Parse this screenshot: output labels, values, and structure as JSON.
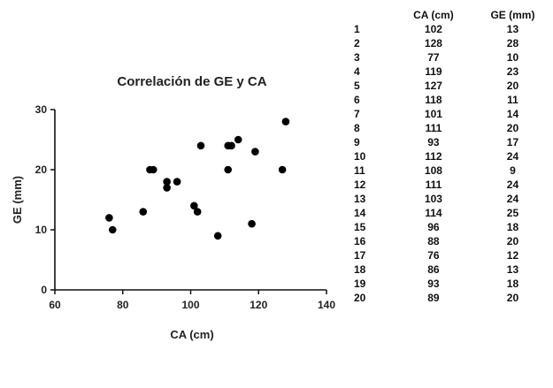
{
  "chart_data": {
    "type": "scatter",
    "title": "Correlación de GE y CA",
    "xlabel": "CA (cm)",
    "ylabel": "GE (mm)",
    "xlim": [
      60,
      140
    ],
    "ylim": [
      0,
      30
    ],
    "xticks": [
      60,
      80,
      100,
      120,
      140
    ],
    "yticks": [
      0,
      10,
      20,
      30
    ],
    "grid": false,
    "legend": "none",
    "point_color": "#000000",
    "series": [
      {
        "points": [
          {
            "x": 102,
            "y": 13
          },
          {
            "x": 128,
            "y": 28
          },
          {
            "x": 77,
            "y": 10
          },
          {
            "x": 119,
            "y": 23
          },
          {
            "x": 127,
            "y": 20
          },
          {
            "x": 118,
            "y": 11
          },
          {
            "x": 101,
            "y": 14
          },
          {
            "x": 111,
            "y": 20
          },
          {
            "x": 93,
            "y": 17
          },
          {
            "x": 112,
            "y": 24
          },
          {
            "x": 108,
            "y": 9
          },
          {
            "x": 111,
            "y": 24
          },
          {
            "x": 103,
            "y": 24
          },
          {
            "x": 114,
            "y": 25
          },
          {
            "x": 96,
            "y": 18
          },
          {
            "x": 88,
            "y": 20
          },
          {
            "x": 76,
            "y": 12
          },
          {
            "x": 86,
            "y": 13
          },
          {
            "x": 93,
            "y": 18
          },
          {
            "x": 89,
            "y": 20
          }
        ]
      }
    ]
  },
  "table": {
    "headers": [
      "",
      "CA (cm)",
      "GE (mm)"
    ],
    "rows": [
      [
        "1",
        "102",
        "13"
      ],
      [
        "2",
        "128",
        "28"
      ],
      [
        "3",
        "77",
        "10"
      ],
      [
        "4",
        "119",
        "23"
      ],
      [
        "5",
        "127",
        "20"
      ],
      [
        "6",
        "118",
        "11"
      ],
      [
        "7",
        "101",
        "14"
      ],
      [
        "8",
        "111",
        "20"
      ],
      [
        "9",
        "93",
        "17"
      ],
      [
        "10",
        "112",
        "24"
      ],
      [
        "11",
        "108",
        "9"
      ],
      [
        "12",
        "111",
        "24"
      ],
      [
        "13",
        "103",
        "24"
      ],
      [
        "14",
        "114",
        "25"
      ],
      [
        "15",
        "96",
        "18"
      ],
      [
        "16",
        "88",
        "20"
      ],
      [
        "17",
        "76",
        "12"
      ],
      [
        "18",
        "86",
        "13"
      ],
      [
        "19",
        "93",
        "18"
      ],
      [
        "20",
        "89",
        "20"
      ]
    ]
  }
}
